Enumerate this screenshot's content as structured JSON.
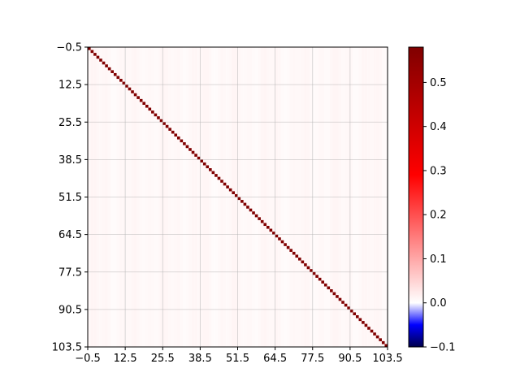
{
  "chart_data": {
    "type": "heatmap",
    "n": 104,
    "diagonal_value": 0.58,
    "off_diagonal_value": 0.008,
    "off_diagonal_variation": 0.004,
    "x_ticks": [
      "−0.5",
      "12.5",
      "25.5",
      "38.5",
      "51.5",
      "64.5",
      "77.5",
      "90.5",
      "103.5"
    ],
    "y_ticks": [
      "−0.5",
      "12.5",
      "25.5",
      "38.5",
      "51.5",
      "64.5",
      "77.5",
      "90.5",
      "103.5"
    ],
    "xlim": [
      -0.5,
      103.5
    ],
    "ylim": [
      -0.5,
      103.5
    ],
    "y_inverted": true,
    "grid": true,
    "colormap": "seismic",
    "colorbar": {
      "vmin": -0.1,
      "vmax": 0.58,
      "ticks": [
        {
          "value": 0.5,
          "label": "0.5"
        },
        {
          "value": 0.4,
          "label": "0.4"
        },
        {
          "value": 0.3,
          "label": "0.3"
        },
        {
          "value": 0.2,
          "label": "0.2"
        },
        {
          "value": 0.1,
          "label": "0.1"
        },
        {
          "value": 0.0,
          "label": "0.0"
        },
        {
          "value": -0.1,
          "label": "−0.1"
        }
      ]
    }
  }
}
